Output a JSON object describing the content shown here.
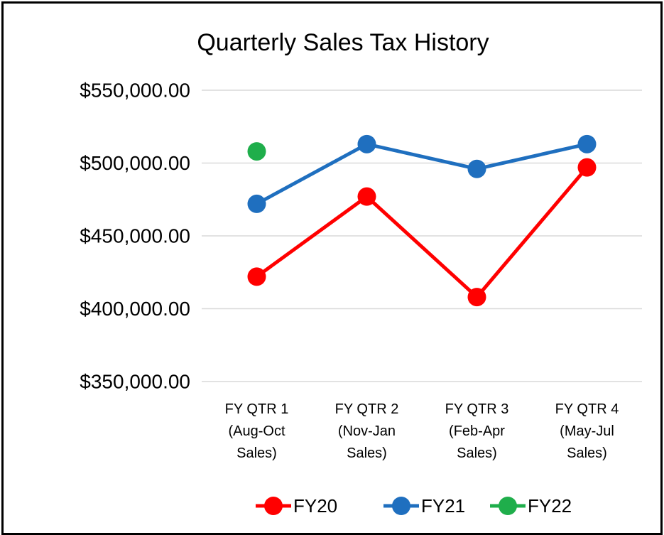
{
  "chart_data": {
    "type": "line",
    "title": "Quarterly Sales Tax History",
    "categories": [
      "FY QTR 1 (Aug-Oct Sales)",
      "FY QTR 2 (Nov-Jan Sales)",
      "FY QTR 3 (Feb-Apr Sales)",
      "FY QTR 4 (May-Jul Sales)"
    ],
    "series": [
      {
        "name": "FY20",
        "color": "#ff0000",
        "values": [
          422000,
          477000,
          408000,
          497000
        ]
      },
      {
        "name": "FY21",
        "color": "#1f6fbf",
        "values": [
          472000,
          513000,
          496000,
          513000
        ]
      },
      {
        "name": "FY22",
        "color": "#1fae4b",
        "values": [
          508000,
          null,
          null,
          null
        ]
      }
    ],
    "ylim": [
      350000,
      550000
    ],
    "yticks": [
      {
        "value": 350000,
        "label": "$350,000.00"
      },
      {
        "value": 400000,
        "label": "$400,000.00"
      },
      {
        "value": 450000,
        "label": "$450,000.00"
      },
      {
        "value": 500000,
        "label": "$500,000.00"
      },
      {
        "value": 550000,
        "label": "$550,000.00"
      }
    ],
    "grid": true,
    "legend": "bottom"
  }
}
